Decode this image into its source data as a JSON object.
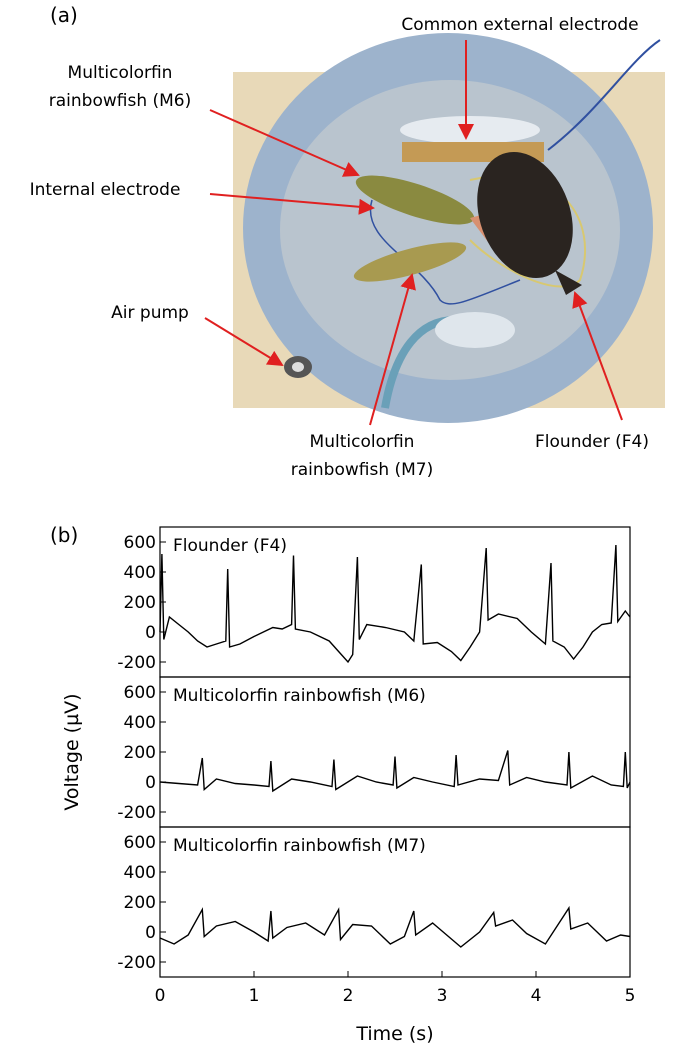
{
  "panel_a": {
    "label": "(a)",
    "callouts": [
      [
        "Common external electrode"
      ],
      [
        "Multicolorfin",
        "rainbowfish (M6)"
      ],
      [
        "Internal electrode"
      ],
      [
        "Air pump"
      ],
      [
        "Multicolorfin",
        "rainbowfish (M7)"
      ],
      [
        "Flounder (F4)"
      ]
    ]
  },
  "panel_b": {
    "label": "(b)"
  },
  "chart_data": [
    {
      "type": "line",
      "annotation": "Flounder (F4)",
      "color": "#000000",
      "xlim": [
        0,
        5
      ],
      "ylim": [
        -300,
        700
      ],
      "yticks": [
        -200,
        0,
        200,
        400,
        600
      ],
      "x": [
        0,
        0.02,
        0.04,
        0.1,
        0.2,
        0.3,
        0.4,
        0.5,
        0.6,
        0.7,
        0.72,
        0.74,
        0.85,
        1.0,
        1.1,
        1.2,
        1.3,
        1.4,
        1.42,
        1.44,
        1.6,
        1.8,
        1.9,
        2.0,
        2.05,
        2.1,
        2.12,
        2.2,
        2.4,
        2.6,
        2.7,
        2.78,
        2.8,
        2.95,
        3.1,
        3.2,
        3.3,
        3.4,
        3.47,
        3.49,
        3.6,
        3.8,
        3.95,
        4.1,
        4.16,
        4.18,
        4.3,
        4.4,
        4.5,
        4.6,
        4.7,
        4.8,
        4.85,
        4.87,
        4.95,
        5.0
      ],
      "values": [
        0,
        520,
        -50,
        100,
        50,
        0,
        -60,
        -100,
        -80,
        -60,
        420,
        -100,
        -80,
        -30,
        0,
        30,
        20,
        50,
        510,
        20,
        0,
        -60,
        -130,
        -200,
        -150,
        500,
        -50,
        50,
        30,
        0,
        -60,
        450,
        -80,
        -70,
        -130,
        -190,
        -100,
        0,
        560,
        80,
        120,
        90,
        0,
        -80,
        460,
        -60,
        -100,
        -180,
        -100,
        0,
        50,
        60,
        580,
        70,
        140,
        100
      ]
    },
    {
      "type": "line",
      "annotation": "Multicolorfin rainbowfish (M6)",
      "color": "#000000",
      "ylabel": "Voltage (µV)",
      "xlim": [
        0,
        5
      ],
      "ylim": [
        -300,
        700
      ],
      "yticks": [
        -200,
        0,
        200,
        400,
        600
      ],
      "x": [
        0,
        0.2,
        0.4,
        0.45,
        0.47,
        0.6,
        0.8,
        1.0,
        1.16,
        1.18,
        1.2,
        1.4,
        1.6,
        1.83,
        1.85,
        1.87,
        2.1,
        2.3,
        2.48,
        2.5,
        2.52,
        2.7,
        2.9,
        3.13,
        3.15,
        3.17,
        3.4,
        3.6,
        3.7,
        3.72,
        3.9,
        4.1,
        4.33,
        4.35,
        4.37,
        4.6,
        4.8,
        4.93,
        4.95,
        4.97,
        5.0
      ],
      "values": [
        0,
        -10,
        -20,
        160,
        -50,
        20,
        -10,
        -20,
        -30,
        140,
        -60,
        20,
        0,
        -30,
        150,
        -50,
        40,
        0,
        -20,
        170,
        -40,
        30,
        0,
        -30,
        180,
        -20,
        20,
        10,
        210,
        -20,
        30,
        0,
        -20,
        200,
        -40,
        40,
        -20,
        -30,
        200,
        -40,
        0
      ]
    },
    {
      "type": "line",
      "annotation": "Multicolorfin rainbowfish (M7)",
      "color": "#000000",
      "xlabel": "Time (s)",
      "xlim": [
        0,
        5
      ],
      "xticks": [
        0,
        1,
        2,
        3,
        4,
        5
      ],
      "ylim": [
        -300,
        700
      ],
      "yticks": [
        -200,
        0,
        200,
        400,
        600
      ],
      "x": [
        0,
        0.15,
        0.3,
        0.45,
        0.47,
        0.6,
        0.8,
        1.0,
        1.15,
        1.18,
        1.2,
        1.35,
        1.55,
        1.75,
        1.9,
        1.92,
        2.05,
        2.25,
        2.45,
        2.6,
        2.7,
        2.72,
        2.9,
        3.05,
        3.2,
        3.4,
        3.55,
        3.57,
        3.75,
        3.9,
        4.1,
        4.35,
        4.37,
        4.55,
        4.75,
        4.9,
        5.0
      ],
      "values": [
        -40,
        -80,
        -20,
        150,
        -30,
        40,
        70,
        0,
        -60,
        140,
        -40,
        30,
        60,
        -20,
        150,
        -50,
        50,
        40,
        -80,
        -30,
        140,
        -20,
        60,
        -20,
        -100,
        0,
        130,
        40,
        80,
        -10,
        -80,
        160,
        20,
        60,
        -60,
        -20,
        -30
      ]
    }
  ]
}
